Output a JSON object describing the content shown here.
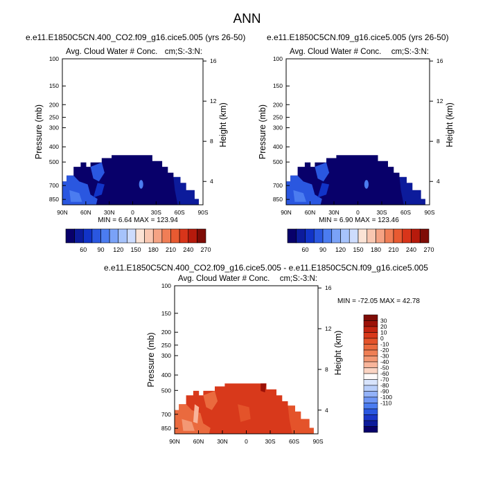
{
  "page_title": "ANN",
  "palette": {
    "pos_ramp": [
      "#08006a",
      "#0c1b9b",
      "#1133c7",
      "#2a57e0",
      "#4b7cf0",
      "#7aa2f7",
      "#a6c3fb",
      "#cddcfd",
      "#fbe3d5",
      "#f9c7b1",
      "#f5a384",
      "#f07e56",
      "#e85a31",
      "#d8351a",
      "#b61a0c",
      "#7e0c06"
    ],
    "diff_ramp": [
      "#08006a",
      "#0c1b9b",
      "#1a36c8",
      "#2a57e0",
      "#4b7cf0",
      "#6f96f5",
      "#93b2f8",
      "#b8cefa",
      "#d8e4fc",
      "#fdfafa",
      "#fbd4c3",
      "#f8b59b",
      "#f39874",
      "#ef7f55",
      "#ea6a3e",
      "#e4532a",
      "#d8391b",
      "#c22410",
      "#9c1107",
      "#7e0c06"
    ]
  },
  "chart_data": [
    {
      "type": "heatmap",
      "id": "panel-1",
      "title": "e.e11.E1850C5CN.400_CO2.f09_g16.cice5.005 (yrs 26-50)",
      "subtitle_left": "Avg. Cloud Water # Conc.",
      "subtitle_right": "cm;S:-3:N:",
      "ylabel": "Pressure (mb)",
      "ylabel_right": "Height (km)",
      "x_ticks": [
        "90N",
        "60N",
        "30N",
        "0",
        "30S",
        "60S",
        "90S"
      ],
      "y_ticks": [
        "100",
        "150",
        "200",
        "250",
        "300",
        "400",
        "500",
        "700",
        "850"
      ],
      "y_ticks_right": [
        "16",
        "12",
        "8",
        "4"
      ],
      "stats": "MIN =   6.64  MAX = 123.94",
      "colorbar_labels": [
        "60",
        "90",
        "120",
        "150",
        "180",
        "210",
        "240",
        "270"
      ]
    },
    {
      "type": "heatmap",
      "id": "panel-2",
      "title": "e.e11.E1850C5CN.f09_g16.cice5.005 (yrs 26-50)",
      "subtitle_left": "Avg. Cloud Water # Conc.",
      "subtitle_right": "cm;S:-3:N:",
      "ylabel": "Pressure (mb)",
      "ylabel_right": "Height (km)",
      "x_ticks": [
        "90N",
        "60N",
        "30N",
        "0",
        "30S",
        "60S",
        "90S"
      ],
      "y_ticks": [
        "100",
        "150",
        "200",
        "250",
        "300",
        "400",
        "500",
        "700",
        "850"
      ],
      "y_ticks_right": [
        "16",
        "12",
        "8",
        "4"
      ],
      "stats": "MIN =   6.90  MAX = 123.46",
      "colorbar_labels": [
        "60",
        "90",
        "120",
        "150",
        "180",
        "210",
        "240",
        "270"
      ]
    },
    {
      "type": "heatmap",
      "id": "panel-diff",
      "title": "e.e11.E1850C5CN.400_CO2.f09_g16.cice5.005 - e.e11.E1850C5CN.f09_g16.cice5.005",
      "subtitle_left": "Avg. Cloud Water # Conc.",
      "subtitle_right": "cm;S:-3:N:",
      "ylabel": "Pressure (mb)",
      "ylabel_right": "Height (km)",
      "x_ticks": [
        "90N",
        "60N",
        "30N",
        "0",
        "30S",
        "60S",
        "90S"
      ],
      "y_ticks": [
        "100",
        "150",
        "200",
        "250",
        "300",
        "400",
        "500",
        "700",
        "850"
      ],
      "y_ticks_right": [
        "16",
        "12",
        "8",
        "4"
      ],
      "stats": "MIN = -72.05  MAX =  42.78",
      "colorbar_labels": [
        "30",
        "20",
        "10",
        "0",
        "-10",
        "-20",
        "-30",
        "-40",
        "-50",
        "-60",
        "-70",
        "-80",
        "-90",
        "-100",
        "-110"
      ]
    }
  ]
}
